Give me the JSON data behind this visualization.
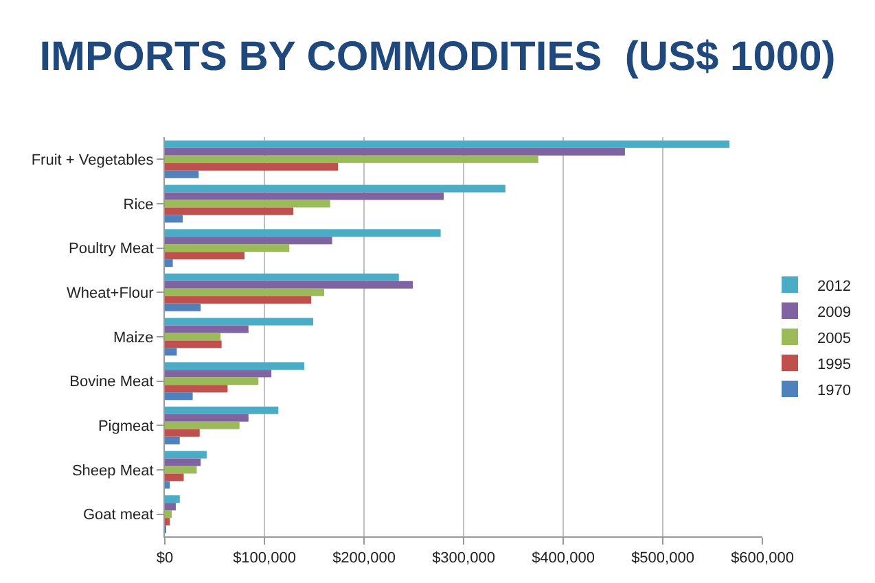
{
  "chart_data": {
    "type": "bar",
    "orientation": "horizontal",
    "title": "IMPORTS BY COMMODITIES  (US$ 1000)",
    "categories": [
      "Fruit + Vegetables",
      "Rice",
      "Poultry Meat",
      "Wheat+Flour",
      "Maize",
      "Bovine Meat",
      "Pigmeat",
      "Sheep Meat",
      "Goat meat"
    ],
    "series": [
      {
        "name": "2012",
        "color": "#4bacc6",
        "values": [
          567000,
          342000,
          277000,
          235000,
          149000,
          140000,
          114000,
          42000,
          15000
        ]
      },
      {
        "name": "2009",
        "color": "#8064a2",
        "values": [
          462000,
          280000,
          168000,
          249000,
          84000,
          107000,
          84000,
          36000,
          11000
        ]
      },
      {
        "name": "2005",
        "color": "#9bbb59",
        "values": [
          375000,
          166000,
          125000,
          160000,
          56000,
          94000,
          75000,
          32000,
          7000
        ]
      },
      {
        "name": "1995",
        "color": "#c0504d",
        "values": [
          174000,
          129000,
          80000,
          147000,
          57000,
          63000,
          35000,
          19000,
          5000
        ]
      },
      {
        "name": "1970",
        "color": "#4f81bd",
        "values": [
          34000,
          18000,
          8000,
          36000,
          12000,
          28000,
          15000,
          5000,
          1000
        ]
      }
    ],
    "xlim": [
      0,
      600000
    ],
    "xticks": [
      {
        "value": 0,
        "label": "$0"
      },
      {
        "value": 100000,
        "label": "$100,000"
      },
      {
        "value": 200000,
        "label": "$200,000"
      },
      {
        "value": 300000,
        "label": "$300,000"
      },
      {
        "value": 400000,
        "label": "$400,000"
      },
      {
        "value": 500000,
        "label": "$500,000"
      },
      {
        "value": 600000,
        "label": "$600,000"
      }
    ],
    "grid": "x",
    "legend": "right"
  }
}
